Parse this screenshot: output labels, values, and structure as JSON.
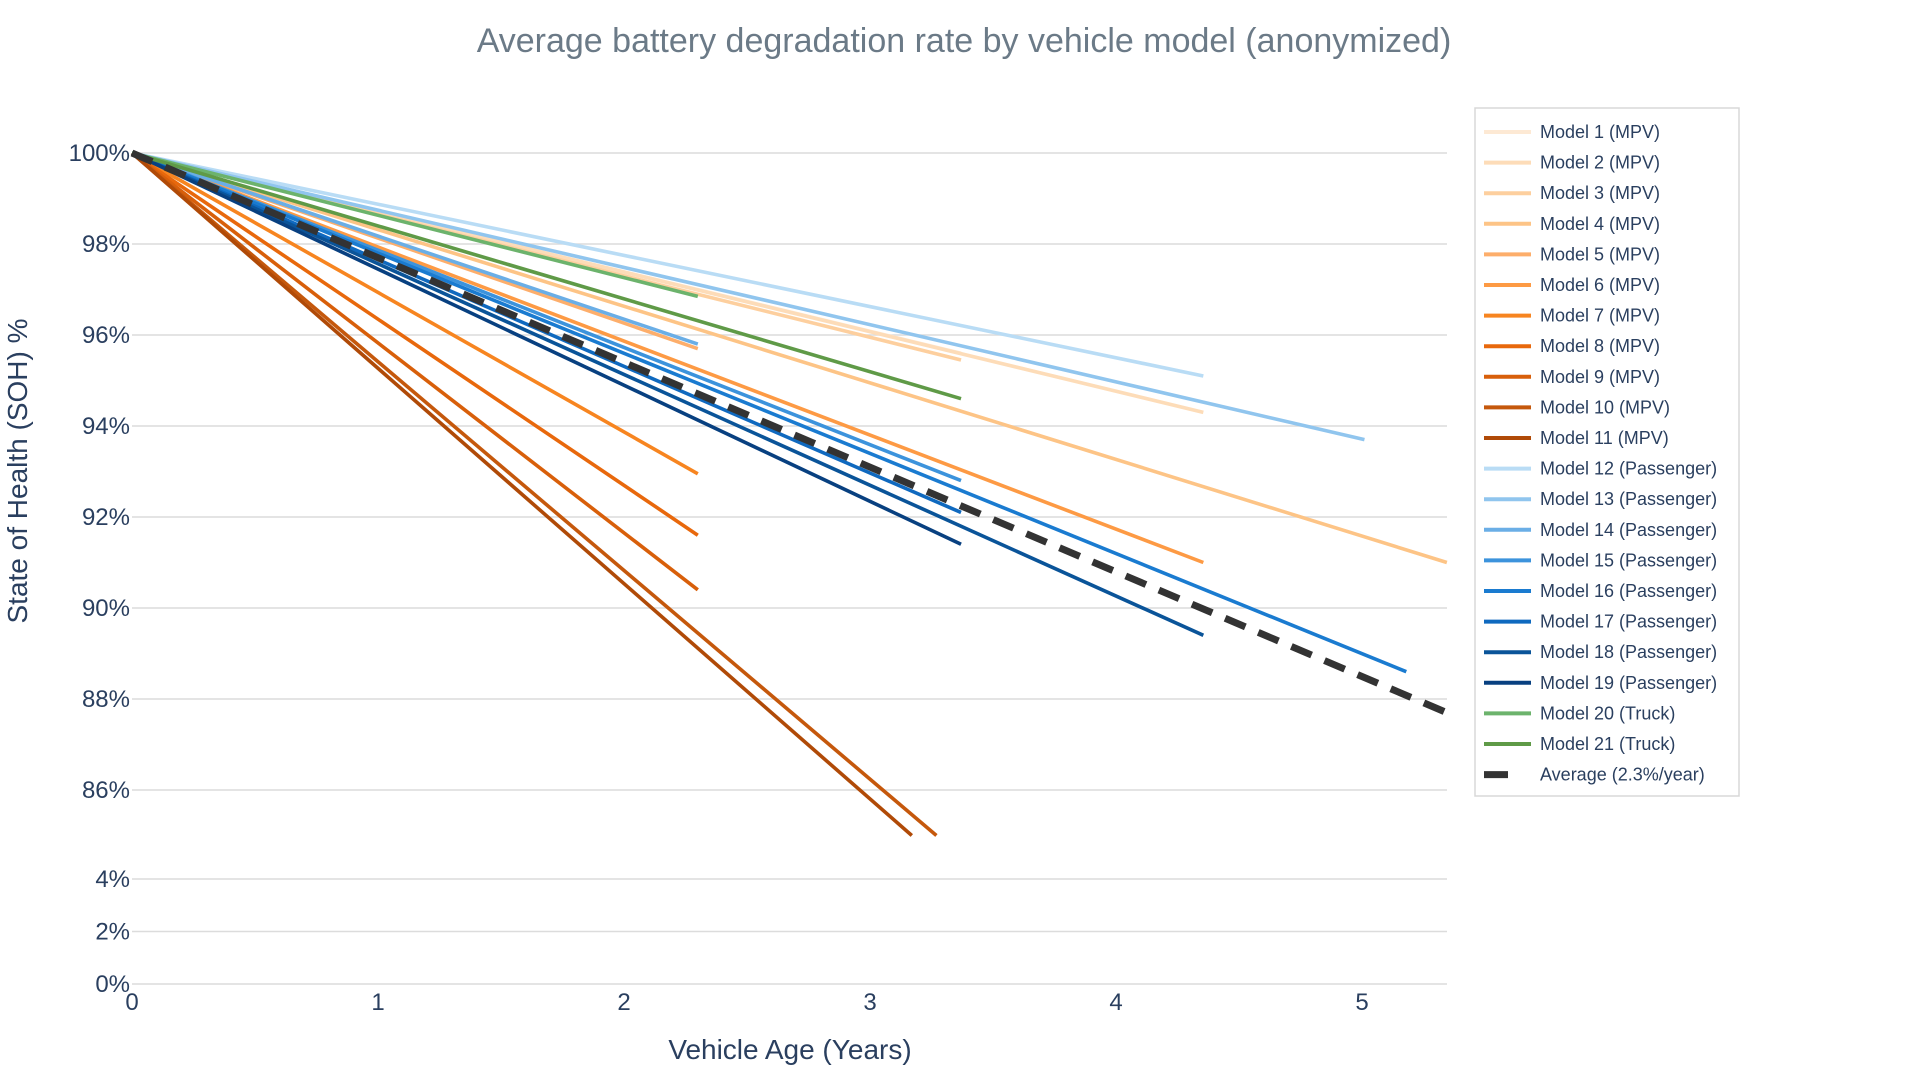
{
  "chart_data": {
    "type": "line",
    "title": "Average battery degradation rate by vehicle model (anonymized)",
    "xlabel": "Vehicle Age (Years)",
    "ylabel": "State of Health (SOH) %",
    "xlim": [
      0,
      5.345
    ],
    "x_ticks": [
      "0",
      "1",
      "2",
      "3",
      "4",
      "5"
    ],
    "y_axis_broken": true,
    "y_upper_range": [
      85,
      100
    ],
    "y_lower_range": [
      0,
      4
    ],
    "y_ticks_upper": [
      "100%",
      "98%",
      "96%",
      "94%",
      "92%",
      "90%",
      "88%",
      "86%"
    ],
    "y_ticks_lower": [
      "4%",
      "2%",
      "0%"
    ],
    "grid": true,
    "legend_position": "right",
    "series": [
      {
        "name": "Model 1 (MPV)",
        "color": "#fde9d4",
        "x": [
          0,
          3.37
        ],
        "y": [
          100,
          95.6
        ]
      },
      {
        "name": "Model 2 (MPV)",
        "color": "#fddcb8",
        "x": [
          0,
          4.355
        ],
        "y": [
          100,
          94.3
        ]
      },
      {
        "name": "Model 3 (MPV)",
        "color": "#fdcf9e",
        "x": [
          0,
          3.37
        ],
        "y": [
          100,
          95.45
        ]
      },
      {
        "name": "Model 4 (MPV)",
        "color": "#fdc486",
        "x": [
          0,
          5.345
        ],
        "y": [
          100,
          91.0
        ]
      },
      {
        "name": "Model 5 (MPV)",
        "color": "#fdae6b",
        "x": [
          0,
          2.3
        ],
        "y": [
          100,
          95.7
        ]
      },
      {
        "name": "Model 6 (MPV)",
        "color": "#fd9a44",
        "x": [
          0,
          4.355
        ],
        "y": [
          100,
          91.0
        ]
      },
      {
        "name": "Model 7 (MPV)",
        "color": "#f78520",
        "x": [
          0,
          2.3
        ],
        "y": [
          100,
          92.95
        ]
      },
      {
        "name": "Model 8 (MPV)",
        "color": "#e8680c",
        "x": [
          0,
          2.3
        ],
        "y": [
          100,
          91.6
        ]
      },
      {
        "name": "Model 9 (MPV)",
        "color": "#d85f0a",
        "x": [
          0,
          2.3
        ],
        "y": [
          100,
          90.4
        ]
      },
      {
        "name": "Model 10 (MPV)",
        "color": "#c5580c",
        "x": [
          0,
          3.27
        ],
        "y": [
          100,
          85.0
        ]
      },
      {
        "name": "Model 11 (MPV)",
        "color": "#b04a07",
        "x": [
          0,
          3.17
        ],
        "y": [
          100,
          85.0
        ]
      },
      {
        "name": "Model 12 (Passenger)",
        "color": "#b9dcf5",
        "x": [
          0,
          4.355
        ],
        "y": [
          100,
          95.1
        ]
      },
      {
        "name": "Model 13 (Passenger)",
        "color": "#90c5ee",
        "x": [
          0,
          5.01
        ],
        "y": [
          100,
          93.7
        ]
      },
      {
        "name": "Model 14 (Passenger)",
        "color": "#6aaee6",
        "x": [
          0,
          2.3
        ],
        "y": [
          100,
          95.8
        ]
      },
      {
        "name": "Model 15 (Passenger)",
        "color": "#3c93dc",
        "x": [
          0,
          3.37
        ],
        "y": [
          100,
          92.8
        ]
      },
      {
        "name": "Model 16 (Passenger)",
        "color": "#1a7bd0",
        "x": [
          0,
          5.18
        ],
        "y": [
          100,
          88.6
        ]
      },
      {
        "name": "Model 17 (Passenger)",
        "color": "#0f69bf",
        "x": [
          0,
          3.37
        ],
        "y": [
          100,
          92.1
        ]
      },
      {
        "name": "Model 18 (Passenger)",
        "color": "#0a5499",
        "x": [
          0,
          4.355
        ],
        "y": [
          100,
          89.4
        ]
      },
      {
        "name": "Model 19 (Passenger)",
        "color": "#084080",
        "x": [
          0,
          3.37
        ],
        "y": [
          100,
          91.4
        ]
      },
      {
        "name": "Model 20 (Truck)",
        "color": "#6cb36c",
        "x": [
          0,
          2.3
        ],
        "y": [
          100,
          96.85
        ]
      },
      {
        "name": "Model 21 (Truck)",
        "color": "#5f9a47",
        "x": [
          0,
          3.37
        ],
        "y": [
          100,
          94.6
        ]
      },
      {
        "name": "Average (2.3%/year)",
        "color": "#333333",
        "dashed": true,
        "x": [
          0,
          5.345
        ],
        "y": [
          100,
          87.7
        ]
      }
    ]
  }
}
